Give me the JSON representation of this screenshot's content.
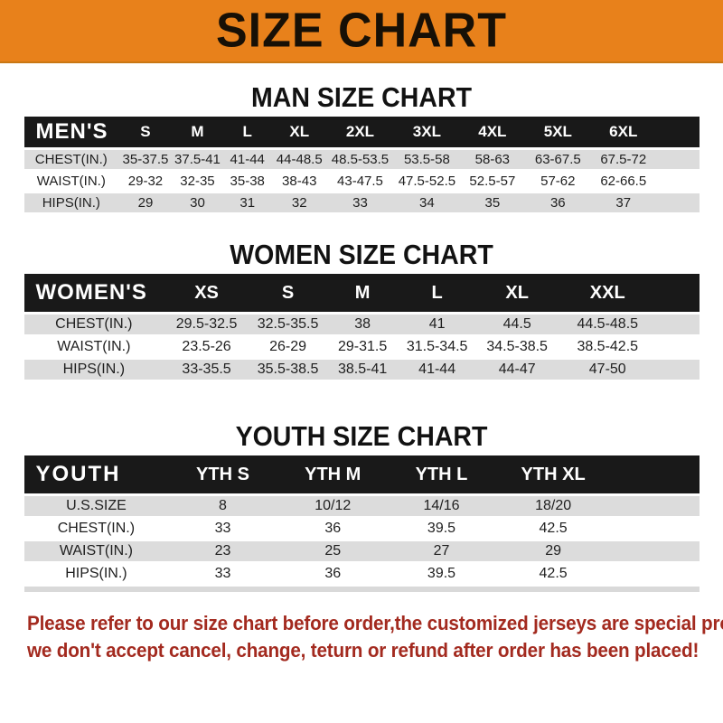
{
  "banner": {
    "title": "SIZE CHART"
  },
  "chart_data": [
    {
      "type": "table",
      "title": "MAN SIZE CHART",
      "label": "MEN'S",
      "columns": [
        "S",
        "M",
        "L",
        "XL",
        "2XL",
        "3XL",
        "4XL",
        "5XL",
        "6XL"
      ],
      "rows": [
        {
          "label": "CHEST(IN.)",
          "values": [
            "35-37.5",
            "37.5-41",
            "41-44",
            "44-48.5",
            "48.5-53.5",
            "53.5-58",
            "58-63",
            "63-67.5",
            "67.5-72"
          ]
        },
        {
          "label": "WAIST(IN.)",
          "values": [
            "29-32",
            "32-35",
            "35-38",
            "38-43",
            "43-47.5",
            "47.5-52.5",
            "52.5-57",
            "57-62",
            "62-66.5"
          ]
        },
        {
          "label": "HIPS(IN.)",
          "values": [
            "29",
            "30",
            "31",
            "32",
            "33",
            "34",
            "35",
            "36",
            "37"
          ]
        }
      ]
    },
    {
      "type": "table",
      "title": "WOMEN SIZE CHART",
      "label": "WOMEN'S",
      "columns": [
        "XS",
        "S",
        "M",
        "L",
        "XL",
        "XXL"
      ],
      "rows": [
        {
          "label": "CHEST(IN.)",
          "values": [
            "29.5-32.5",
            "32.5-35.5",
            "38",
            "41",
            "44.5",
            "44.5-48.5"
          ]
        },
        {
          "label": "WAIST(IN.)",
          "values": [
            "23.5-26",
            "26-29",
            "29-31.5",
            "31.5-34.5",
            "34.5-38.5",
            "38.5-42.5"
          ]
        },
        {
          "label": "HIPS(IN.)",
          "values": [
            "33-35.5",
            "35.5-38.5",
            "38.5-41",
            "41-44",
            "44-47",
            "47-50"
          ]
        }
      ]
    },
    {
      "type": "table",
      "title": "YOUTH SIZE CHART",
      "label": "YOUTH",
      "columns": [
        "YTH S",
        "YTH M",
        "YTH L",
        "YTH XL"
      ],
      "rows": [
        {
          "label": "U.S.SIZE",
          "values": [
            "8",
            "10/12",
            "14/16",
            "18/20"
          ]
        },
        {
          "label": "CHEST(IN.)",
          "values": [
            "33",
            "36",
            "39.5",
            "42.5"
          ]
        },
        {
          "label": "WAIST(IN.)",
          "values": [
            "23",
            "25",
            "27",
            "29"
          ]
        },
        {
          "label": "HIPS(IN.)",
          "values": [
            "33",
            "36",
            "39.5",
            "42.5"
          ]
        }
      ]
    }
  ],
  "footer": {
    "lines": [
      "Please refer to our size chart before order,the customized jerseys are special products,",
      "we don't accept cancel, change, teturn or refund after order has been placed!"
    ]
  },
  "colors": {
    "banner_orange": "#E8811B",
    "header_bar_black": "#191919",
    "row_shade_gray": "#DCDCDC",
    "row_white": "#FFFFFF",
    "footer_red": "#A32A1F",
    "title_black": "#171006"
  }
}
